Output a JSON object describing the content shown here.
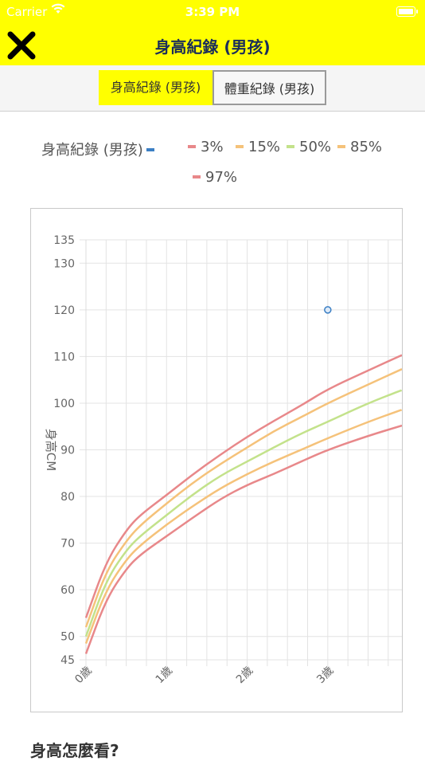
{
  "status": {
    "carrier": "Carrier",
    "time": "3:39 PM"
  },
  "nav": {
    "title": "身高紀錄 (男孩)"
  },
  "segments": {
    "height": "身高紀錄 (男孩)",
    "weight": "體重紀錄 (男孩)"
  },
  "legend": {
    "record": "身高紀錄 (男孩)",
    "p3": "3%",
    "p15": "15%",
    "p50": "50%",
    "p85": "85%",
    "p97": "97%"
  },
  "colors": {
    "accent": "#ffff00",
    "record": "#3b7fc4",
    "p3": "#e8888a",
    "p15": "#f5c27a",
    "p50": "#c3e28b",
    "p85": "#f5c27a",
    "p97": "#e8888a"
  },
  "chart_data": {
    "type": "line",
    "ylabel": "身高CM",
    "yticks": [
      45,
      50,
      60,
      70,
      80,
      90,
      100,
      110,
      120,
      130,
      135
    ],
    "ylim": [
      45,
      135
    ],
    "xticks": [
      "0歲",
      "1歲",
      "2歲",
      "3歲"
    ],
    "xlim": [
      0,
      3.92
    ],
    "grid": true,
    "series": [
      {
        "name": "身高紀錄 (男孩)",
        "color": "#3b7fc4",
        "points": [
          [
            3,
            120
          ]
        ],
        "style": "point"
      },
      {
        "name": "3%",
        "color": "#e8888a",
        "points": [
          [
            0,
            46.3
          ],
          [
            0.25,
            58
          ],
          [
            0.5,
            64.5
          ],
          [
            0.67,
            67.5
          ],
          [
            1,
            71.5
          ],
          [
            1.33,
            75.5
          ],
          [
            1.67,
            79.5
          ],
          [
            2,
            82.5
          ],
          [
            2.33,
            84.8
          ],
          [
            2.67,
            87.5
          ],
          [
            3,
            90
          ],
          [
            3.5,
            93
          ],
          [
            3.92,
            95.2
          ]
        ]
      },
      {
        "name": "15%",
        "color": "#f5c27a",
        "points": [
          [
            0,
            48.5
          ],
          [
            0.25,
            60
          ],
          [
            0.5,
            66.5
          ],
          [
            0.67,
            69.5
          ],
          [
            1,
            74
          ],
          [
            1.33,
            78
          ],
          [
            1.67,
            81.8
          ],
          [
            2,
            84.8
          ],
          [
            2.33,
            87.5
          ],
          [
            2.67,
            90
          ],
          [
            3,
            92.5
          ],
          [
            3.5,
            96
          ],
          [
            3.92,
            98.6
          ]
        ]
      },
      {
        "name": "50%",
        "color": "#c3e28b",
        "points": [
          [
            0,
            50
          ],
          [
            0.25,
            62
          ],
          [
            0.5,
            68.5
          ],
          [
            0.67,
            71.5
          ],
          [
            1,
            76
          ],
          [
            1.33,
            80.5
          ],
          [
            1.67,
            84.5
          ],
          [
            2,
            87.5
          ],
          [
            2.33,
            90.5
          ],
          [
            2.67,
            93.5
          ],
          [
            3,
            96
          ],
          [
            3.5,
            100
          ],
          [
            3.92,
            102.8
          ]
        ]
      },
      {
        "name": "85%",
        "color": "#f5c27a",
        "points": [
          [
            0,
            52
          ],
          [
            0.25,
            64
          ],
          [
            0.5,
            70.5
          ],
          [
            0.67,
            73.8
          ],
          [
            1,
            78.5
          ],
          [
            1.33,
            83
          ],
          [
            1.67,
            87
          ],
          [
            2,
            90.5
          ],
          [
            2.33,
            94
          ],
          [
            2.67,
            97
          ],
          [
            3,
            100
          ],
          [
            3.5,
            104
          ],
          [
            3.92,
            107.3
          ]
        ]
      },
      {
        "name": "97%",
        "color": "#e8888a",
        "points": [
          [
            0,
            54
          ],
          [
            0.25,
            66
          ],
          [
            0.5,
            72.8
          ],
          [
            0.67,
            76
          ],
          [
            1,
            80.3
          ],
          [
            1.33,
            84.8
          ],
          [
            1.67,
            89
          ],
          [
            2,
            92.8
          ],
          [
            2.33,
            96.2
          ],
          [
            2.67,
            99.5
          ],
          [
            3,
            103
          ],
          [
            3.5,
            107
          ],
          [
            3.92,
            110.3
          ]
        ]
      }
    ]
  },
  "section": {
    "title": "身高怎麼看?"
  }
}
